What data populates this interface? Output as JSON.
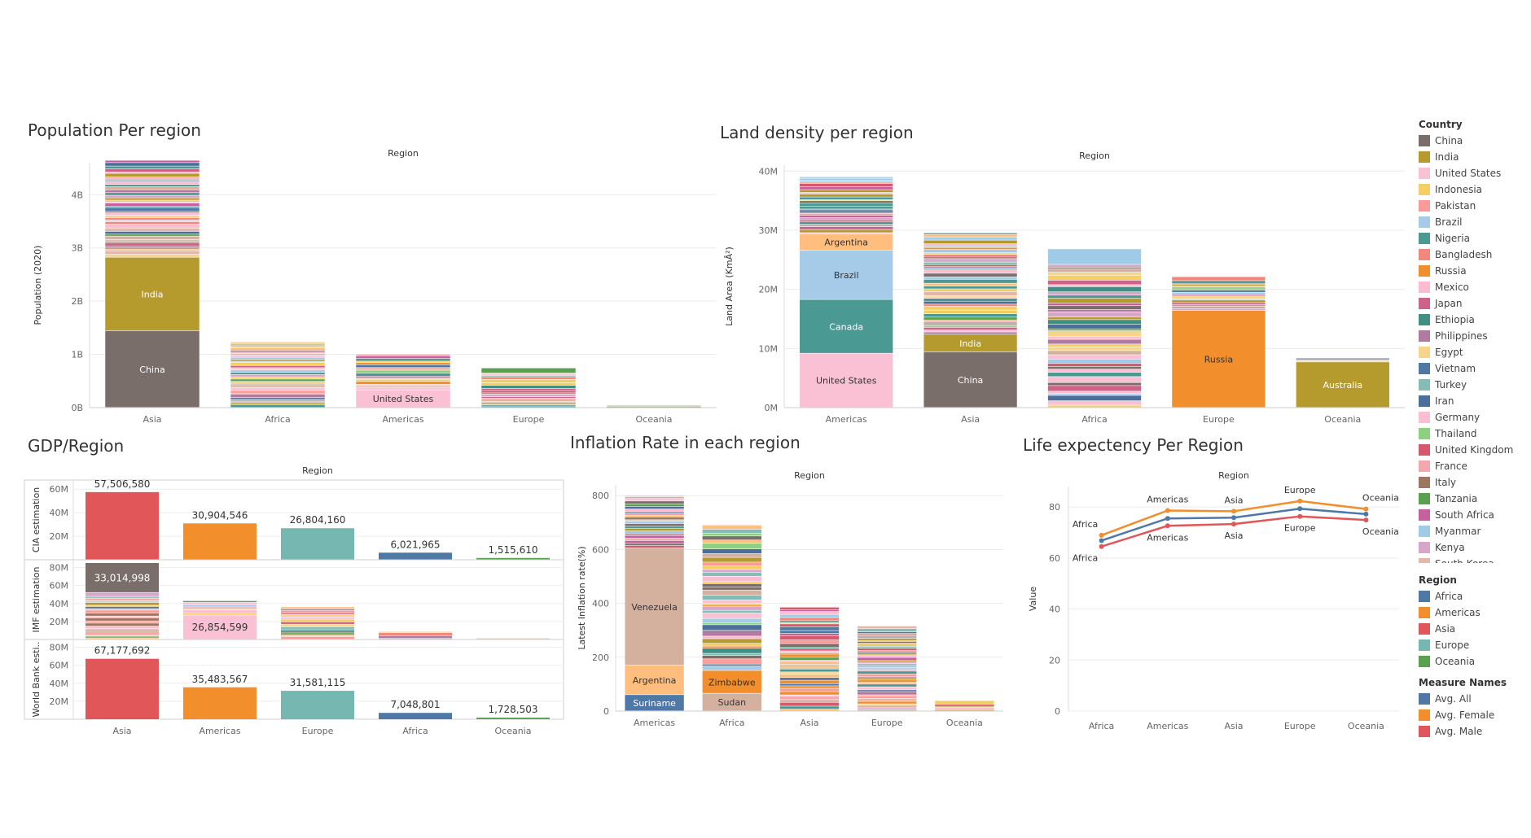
{
  "titles": {
    "population": "Population Per region",
    "land": "Land density per region",
    "gdp": "GDP/Region",
    "inflation": "Inflation Rate in each region",
    "life": "Life expectency Per Region"
  },
  "legends": {
    "country": {
      "title": "Country",
      "items": [
        {
          "label": "China",
          "color": "#7a6e6b"
        },
        {
          "label": "India",
          "color": "#b59a2e"
        },
        {
          "label": "United States",
          "color": "#f9c1d3"
        },
        {
          "label": "Indonesia",
          "color": "#f5cf64"
        },
        {
          "label": "Pakistan",
          "color": "#fb9a99"
        },
        {
          "label": "Brazil",
          "color": "#a6cbe8"
        },
        {
          "label": "Nigeria",
          "color": "#4a9a93"
        },
        {
          "label": "Bangladesh",
          "color": "#f4877c"
        },
        {
          "label": "Russia",
          "color": "#f28e2b"
        },
        {
          "label": "Mexico",
          "color": "#fbbbd1"
        },
        {
          "label": "Japan",
          "color": "#d0628a"
        },
        {
          "label": "Ethiopia",
          "color": "#3f8f85"
        },
        {
          "label": "Philippines",
          "color": "#b07aa1"
        },
        {
          "label": "Egypt",
          "color": "#f6d58a"
        },
        {
          "label": "Vietnam",
          "color": "#4e79a7"
        },
        {
          "label": "Turkey",
          "color": "#86bcb6"
        },
        {
          "label": "Iran",
          "color": "#4b6f9c"
        },
        {
          "label": "Germany",
          "color": "#fabfd2"
        },
        {
          "label": "Thailand",
          "color": "#8cd17d"
        },
        {
          "label": "United Kingdom",
          "color": "#d4596c"
        },
        {
          "label": "France",
          "color": "#f3a7ae"
        },
        {
          "label": "Italy",
          "color": "#9d7660"
        },
        {
          "label": "Tanzania",
          "color": "#59a14f"
        },
        {
          "label": "South Africa",
          "color": "#c9609e"
        },
        {
          "label": "Myanmar",
          "color": "#a0cbe8"
        },
        {
          "label": "Kenya",
          "color": "#d7a6c8"
        },
        {
          "label": "South Korea",
          "color": "#e8b6a7"
        }
      ]
    },
    "region": {
      "title": "Region",
      "items": [
        {
          "label": "Africa",
          "color": "#4e79a7"
        },
        {
          "label": "Americas",
          "color": "#f28e2b"
        },
        {
          "label": "Asia",
          "color": "#e15759"
        },
        {
          "label": "Europe",
          "color": "#76b7b2"
        },
        {
          "label": "Oceania",
          "color": "#59a14f"
        }
      ]
    },
    "measure": {
      "title": "Measure Names",
      "items": [
        {
          "label": "Avg. All",
          "color": "#4e79a7"
        },
        {
          "label": "Avg. Female",
          "color": "#f28e2b"
        },
        {
          "label": "Avg. Male",
          "color": "#e15759"
        }
      ]
    }
  },
  "chart_data": [
    {
      "id": "population",
      "type": "bar",
      "stacked": true,
      "title": "Population Per region",
      "column_header": "Region",
      "ylabel": "Population (2020)",
      "ylim": [
        0,
        4600000000
      ],
      "yticks": [
        0,
        1000000000,
        2000000000,
        3000000000,
        4000000000
      ],
      "ytick_labels": [
        "0B",
        "1B",
        "2B",
        "3B",
        "4B"
      ],
      "categories": [
        "Asia",
        "Africa",
        "Americas",
        "Europe",
        "Oceania"
      ],
      "totals": [
        4640000000,
        1230000000,
        1000000000,
        740000000,
        42000000
      ],
      "labeled_segments": [
        {
          "category": "Asia",
          "label": "China",
          "value": 1440000000,
          "color": "#7a6e6b"
        },
        {
          "category": "Asia",
          "label": "India",
          "value": 1380000000,
          "color": "#b59a2e"
        },
        {
          "category": "Americas",
          "label": "United States",
          "value": 330000000,
          "color": "#f9c1d3"
        }
      ]
    },
    {
      "id": "land",
      "type": "bar",
      "stacked": true,
      "title": "Land density per region",
      "column_header": "Region",
      "ylabel": "Land Area (KmÂ²)",
      "ylim": [
        0,
        41000000
      ],
      "yticks": [
        0,
        10000000,
        20000000,
        30000000,
        40000000
      ],
      "ytick_labels": [
        "0M",
        "10M",
        "20M",
        "30M",
        "40M"
      ],
      "categories": [
        "Americas",
        "Asia",
        "Africa",
        "Europe",
        "Oceania"
      ],
      "totals": [
        39000000,
        29500000,
        26800000,
        22100000,
        8400000
      ],
      "labeled_segments": [
        {
          "category": "Americas",
          "label": "United States",
          "value": 9150000,
          "color": "#f9c1d3"
        },
        {
          "category": "Americas",
          "label": "Canada",
          "value": 9100000,
          "color": "#4a9a93"
        },
        {
          "category": "Americas",
          "label": "Brazil",
          "value": 8360000,
          "color": "#a6cbe8"
        },
        {
          "category": "Americas",
          "label": "Argentina",
          "value": 2740000,
          "color": "#ffbe7d"
        },
        {
          "category": "Asia",
          "label": "China",
          "value": 9390000,
          "color": "#7a6e6b"
        },
        {
          "category": "Asia",
          "label": "India",
          "value": 2970000,
          "color": "#b59a2e"
        },
        {
          "category": "Europe",
          "label": "Russia",
          "value": 16380000,
          "color": "#f28e2b"
        },
        {
          "category": "Oceania",
          "label": "Australia",
          "value": 7680000,
          "color": "#b59a2e"
        }
      ]
    },
    {
      "id": "gdp",
      "type": "bar",
      "title": "GDP/Region",
      "column_header": "Region",
      "categories": [
        "Asia",
        "Americas",
        "Europe",
        "Africa",
        "Oceania"
      ],
      "category_colors": [
        "#e15759",
        "#f28e2b",
        "#76b7b2",
        "#4e79a7",
        "#59a14f"
      ],
      "rows": [
        {
          "label": "CIA estimation",
          "ylim": [
            0,
            65000000
          ],
          "yticks": [
            20000000,
            40000000,
            60000000
          ],
          "ytick_labels": [
            "20M",
            "40M",
            "60M"
          ],
          "stacked": false,
          "values": [
            57506580,
            30904546,
            26804160,
            6021965,
            1515610
          ],
          "value_labels": [
            "57,506,580",
            "30,904,546",
            "26,804,160",
            "6,021,965",
            "1,515,610"
          ]
        },
        {
          "label": "IMF estimation",
          "ylim": [
            0,
            85000000
          ],
          "yticks": [
            20000000,
            40000000,
            60000000,
            80000000
          ],
          "ytick_labels": [
            "20M",
            "40M",
            "60M",
            "80M"
          ],
          "stacked": true,
          "totals": [
            85000000,
            43000000,
            36000000,
            8500000,
            1500000
          ],
          "labeled_segments": [
            {
              "category": "Asia",
              "label": "33,014,998",
              "value": 33014998,
              "color": "#7a6e6b"
            },
            {
              "category": "Americas",
              "label": "26,854,599",
              "value": 26854599,
              "color": "#f9c1d3"
            }
          ]
        },
        {
          "label": "World Bank esti..",
          "ylim": [
            0,
            85000000
          ],
          "yticks": [
            20000000,
            40000000,
            60000000,
            80000000
          ],
          "ytick_labels": [
            "20M",
            "40M",
            "60M",
            "80M"
          ],
          "stacked": false,
          "values": [
            67177692,
            35483567,
            31581115,
            7048801,
            1728503
          ],
          "value_labels": [
            "67,177,692",
            "35,483,567",
            "31,581,115",
            "7,048,801",
            "1,728,503"
          ]
        }
      ]
    },
    {
      "id": "inflation",
      "type": "bar",
      "stacked": true,
      "title": "Inflation Rate in each region",
      "column_header": "Region",
      "ylabel": "Latest Inflation rate(%)",
      "ylim": [
        0,
        840
      ],
      "yticks": [
        0,
        200,
        400,
        600,
        800
      ],
      "ytick_labels": [
        "0",
        "200",
        "400",
        "600",
        "800"
      ],
      "categories": [
        "Americas",
        "Africa",
        "Asia",
        "Europe",
        "Oceania"
      ],
      "totals": [
        800,
        690,
        385,
        315,
        38
      ],
      "labeled_segments": [
        {
          "category": "Americas",
          "label": "Suriname",
          "value": 60,
          "color": "#4e79a7"
        },
        {
          "category": "Americas",
          "label": "Argentina",
          "value": 110,
          "color": "#ffbe7d"
        },
        {
          "category": "Americas",
          "label": "Venezuela",
          "value": 435,
          "color": "#d4b19f"
        },
        {
          "category": "Africa",
          "label": "Sudan",
          "value": 65,
          "color": "#d4b19f"
        },
        {
          "category": "Africa",
          "label": "Zimbabwe",
          "value": 85,
          "color": "#f28e2b"
        }
      ]
    },
    {
      "id": "life",
      "type": "line",
      "title": "Life expectency Per Region",
      "column_header": "Region",
      "ylabel": "Value",
      "ylim": [
        0,
        88
      ],
      "yticks": [
        0,
        20,
        40,
        60,
        80
      ],
      "ytick_labels": [
        "0",
        "20",
        "40",
        "60",
        "80"
      ],
      "categories": [
        "Africa",
        "Americas",
        "Asia",
        "Europe",
        "Oceania"
      ],
      "series": [
        {
          "name": "Avg. All",
          "color": "#4e79a7",
          "values": [
            66.8,
            75.5,
            75.8,
            79.3,
            77.2
          ]
        },
        {
          "name": "Avg. Female",
          "color": "#f28e2b",
          "values": [
            68.9,
            78.6,
            78.3,
            82.3,
            79.2
          ]
        },
        {
          "name": "Avg. Male",
          "color": "#e15759",
          "values": [
            64.5,
            72.6,
            73.3,
            76.3,
            74.9
          ]
        }
      ],
      "point_labels_top": [
        "Africa",
        "Americas",
        "Asia",
        "Europe",
        "Oceania"
      ],
      "point_labels_bottom": [
        "Africa",
        "Americas",
        "Asia",
        "Europe",
        "Oceania"
      ]
    }
  ]
}
